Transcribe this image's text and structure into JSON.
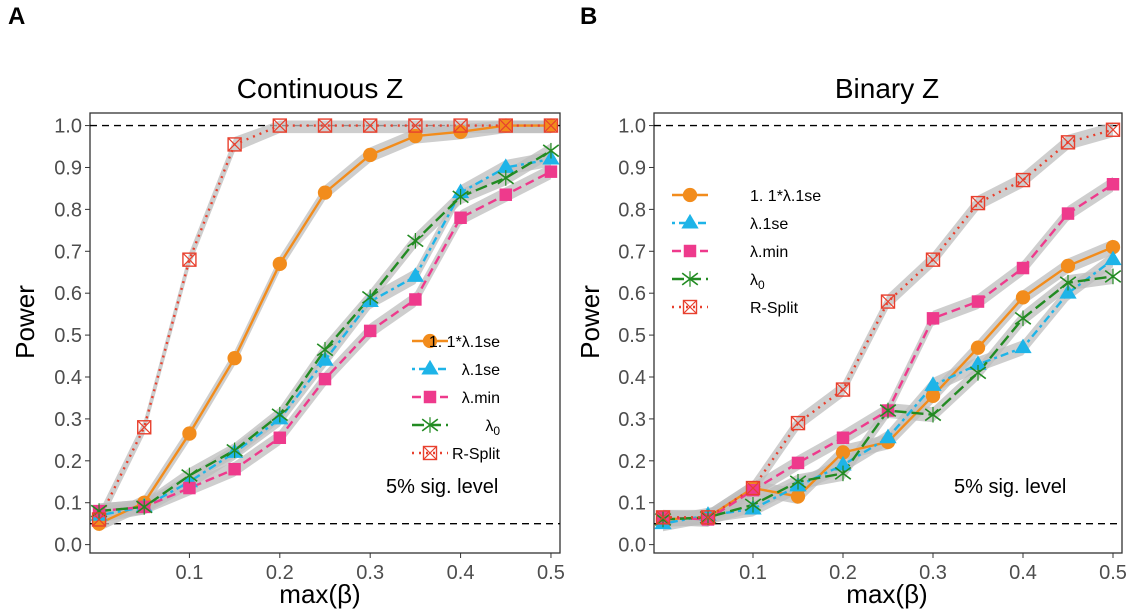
{
  "panels": [
    {
      "letter": "A"
    },
    {
      "letter": "B"
    }
  ],
  "legend_labels": {
    "s1": "1. 1*λ.1se",
    "s2": "λ.1se",
    "s3": "λ.min",
    "s4_base": "λ",
    "s4_sub": "0",
    "s5": "R-Split"
  },
  "colors": {
    "s1": "#F28C1C",
    "s2": "#1EB4E8",
    "s3": "#EE3A8C",
    "s4": "#228B22",
    "s5": "#E8402E",
    "ribbon": "#BEBEBE",
    "panel_border": "#333333",
    "ref_line": "#000000",
    "tick_text": "#4D4D4D"
  },
  "markers": {
    "s1": "circle",
    "s2": "triangle",
    "s3": "square",
    "s4": "x-cross",
    "s5": "crossed-square"
  },
  "line_styles": {
    "s1": "solid",
    "s2": "dotted-dash",
    "s3": "dashed",
    "s4": "long-dash",
    "s5": "dotted"
  },
  "chart_data": [
    {
      "type": "line",
      "title": "Continuous Z",
      "xlabel": "max(β)",
      "ylabel": "Power",
      "annotation": "5% sig. level",
      "xlim": [
        -0.01,
        0.51
      ],
      "ylim": [
        -0.02,
        1.03
      ],
      "x_ticks": [
        0.1,
        0.2,
        0.3,
        0.4,
        0.5
      ],
      "x_tick_labels": [
        "0.1",
        "0.2",
        "0.3",
        "0.4",
        "0.5"
      ],
      "y_ticks": [
        0.0,
        0.1,
        0.2,
        0.3,
        0.4,
        0.5,
        0.6,
        0.7,
        0.8,
        0.9,
        1.0
      ],
      "y_tick_labels": [
        "0.0",
        "0.1",
        "0.2",
        "0.3",
        "0.4",
        "0.5",
        "0.6",
        "0.7",
        "0.8",
        "0.9",
        "1.0"
      ],
      "hlines": [
        0.05,
        1.0
      ],
      "grid": false,
      "legend_position": "bottom-right",
      "x": [
        0.0,
        0.05,
        0.1,
        0.15,
        0.2,
        0.25,
        0.3,
        0.35,
        0.4,
        0.45,
        0.5
      ],
      "series": [
        {
          "key": "s1",
          "values": [
            0.05,
            0.1,
            0.265,
            0.445,
            0.67,
            0.84,
            0.93,
            0.975,
            0.985,
            1.0,
            1.0
          ]
        },
        {
          "key": "s2",
          "values": [
            0.07,
            0.09,
            0.15,
            0.22,
            0.3,
            0.44,
            0.58,
            0.64,
            0.84,
            0.9,
            0.92
          ]
        },
        {
          "key": "s3",
          "values": [
            0.08,
            0.09,
            0.135,
            0.18,
            0.255,
            0.395,
            0.51,
            0.585,
            0.78,
            0.835,
            0.89
          ]
        },
        {
          "key": "s4",
          "values": [
            0.08,
            0.09,
            0.165,
            0.225,
            0.31,
            0.465,
            0.59,
            0.725,
            0.83,
            0.875,
            0.94
          ]
        },
        {
          "key": "s5",
          "values": [
            0.06,
            0.28,
            0.68,
            0.955,
            1.0,
            1.0,
            1.0,
            1.0,
            1.0,
            1.0,
            1.0
          ]
        }
      ]
    },
    {
      "type": "line",
      "title": "Binary Z",
      "xlabel": "max(β)",
      "ylabel": "Power",
      "annotation": "5% sig. level",
      "xlim": [
        -0.01,
        0.51
      ],
      "ylim": [
        -0.02,
        1.03
      ],
      "x_ticks": [
        0.1,
        0.2,
        0.3,
        0.4,
        0.5
      ],
      "x_tick_labels": [
        "0.1",
        "0.2",
        "0.3",
        "0.4",
        "0.5"
      ],
      "y_ticks": [
        0.0,
        0.1,
        0.2,
        0.3,
        0.4,
        0.5,
        0.6,
        0.7,
        0.8,
        0.9,
        1.0
      ],
      "y_tick_labels": [
        "0.0",
        "0.1",
        "0.2",
        "0.3",
        "0.4",
        "0.5",
        "0.6",
        "0.7",
        "0.8",
        "0.9",
        "1.0"
      ],
      "hlines": [
        0.05,
        1.0
      ],
      "grid": false,
      "legend_position": "top-left",
      "x": [
        0.0,
        0.05,
        0.1,
        0.15,
        0.2,
        0.25,
        0.3,
        0.35,
        0.4,
        0.45,
        0.5
      ],
      "series": [
        {
          "key": "s1",
          "values": [
            0.06,
            0.065,
            0.135,
            0.115,
            0.22,
            0.245,
            0.355,
            0.47,
            0.59,
            0.665,
            0.71
          ]
        },
        {
          "key": "s2",
          "values": [
            0.05,
            0.07,
            0.085,
            0.14,
            0.19,
            0.255,
            0.38,
            0.43,
            0.47,
            0.6,
            0.68
          ]
        },
        {
          "key": "s3",
          "values": [
            0.065,
            0.06,
            0.13,
            0.195,
            0.255,
            0.32,
            0.54,
            0.58,
            0.66,
            0.79,
            0.86
          ]
        },
        {
          "key": "s4",
          "values": [
            0.06,
            0.065,
            0.095,
            0.15,
            0.17,
            0.32,
            0.31,
            0.41,
            0.54,
            0.625,
            0.64
          ]
        },
        {
          "key": "s5",
          "values": [
            0.065,
            0.065,
            0.135,
            0.29,
            0.37,
            0.58,
            0.68,
            0.815,
            0.87,
            0.96,
            0.99
          ]
        }
      ]
    }
  ]
}
